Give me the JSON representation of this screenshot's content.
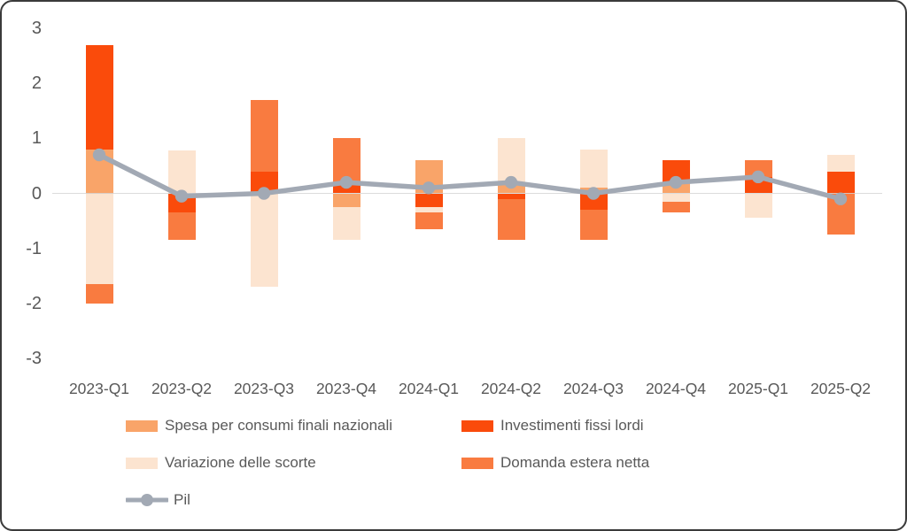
{
  "chart_data": {
    "type": "bar",
    "stacked": true,
    "title": "",
    "xlabel": "",
    "ylabel": "",
    "categories": [
      "2023-Q1",
      "2023-Q2",
      "2023-Q3",
      "2023-Q4",
      "2024-Q1",
      "2024-Q2",
      "2024-Q3",
      "2024-Q4",
      "2025-Q1",
      "2025-Q2"
    ],
    "series": [
      {
        "name": "Spesa per consumi finali nazionali",
        "type": "bar",
        "color": "#F9A469",
        "values": [
          0.8,
          0,
          0,
          -0.25,
          0.6,
          0.15,
          0.1,
          0.2,
          0,
          0
        ]
      },
      {
        "name": "Investimenti fissi lordi",
        "type": "bar",
        "color": "#FA4B0B",
        "values": [
          1.9,
          -0.35,
          0.4,
          0.2,
          -0.25,
          -0.1,
          -0.3,
          0.4,
          0.3,
          0.4
        ]
      },
      {
        "name": "Variazione delle scorte",
        "type": "bar",
        "color": "#FCE4D0",
        "values": [
          -1.65,
          0.78,
          -1.7,
          -0.6,
          -0.1,
          0.85,
          0.7,
          -0.15,
          -0.45,
          0.3
        ]
      },
      {
        "name": "Domanda estera netta",
        "type": "bar",
        "color": "#F97B40",
        "values": [
          -0.35,
          -0.5,
          1.3,
          0.8,
          -0.3,
          -0.75,
          -0.55,
          -0.2,
          0.3,
          -0.75
        ]
      },
      {
        "name": "Pil",
        "type": "line",
        "color": "#A2A9B4",
        "values": [
          0.7,
          -0.05,
          0,
          0.2,
          0.1,
          0.2,
          0,
          0.2,
          0.3,
          -0.1
        ]
      }
    ],
    "ylim": [
      -3,
      3
    ],
    "y_ticks": [
      "3",
      "2",
      "1",
      "0",
      "-1",
      "-2",
      "-3"
    ],
    "grid": "zero-line-only",
    "legend_position": "bottom-left"
  },
  "colors": {
    "axis_text": "#595959",
    "zero_gridline": "#D6D6D6",
    "background": "#FFFFFF",
    "frame_border": "#3A3A3A"
  }
}
